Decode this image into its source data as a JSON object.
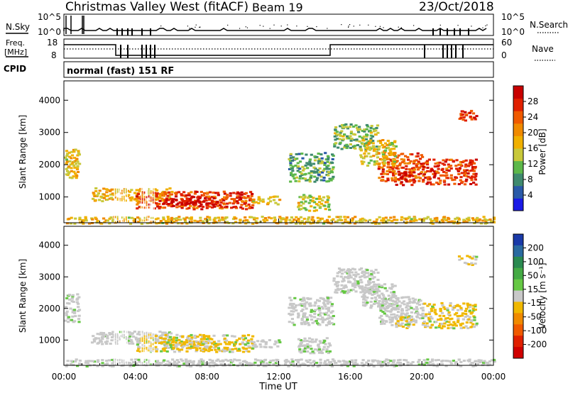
{
  "header": {
    "title": "Christmas Valley West (fitACF)",
    "beam": "Beam 19",
    "date": "23/Oct/2018"
  },
  "chart_data": [
    {
      "type": "line",
      "panel": "nsky-nsearch",
      "left_label": "N.Sky",
      "right_label": "N.Search",
      "left_ticks": [
        "10^5",
        "10^0"
      ],
      "right_ticks": [
        "10^5",
        "10^0"
      ]
    },
    {
      "type": "line",
      "panel": "freq-nave",
      "left_label": "Freq.",
      "left_unit": "[MHz]",
      "right_label": "Nave",
      "left_ticks": [
        "18",
        "8"
      ],
      "right_ticks": [
        "60",
        "0"
      ],
      "cpid_label": "CPID",
      "cpid_text": "normal (fast) 151 RF"
    },
    {
      "type": "heatmap",
      "panel": "power",
      "ylabel": "Slant Range [km]",
      "ylim": [
        200,
        4600
      ],
      "yticks": [
        1000,
        2000,
        3000,
        4000
      ],
      "colorbar_label": "Power [dB]",
      "colorbar_ticks": [
        "4",
        "8",
        "12",
        "16",
        "20",
        "24",
        "28"
      ],
      "colorbar_colors": [
        "#1a1ae6",
        "#2a5aa8",
        "#3f8a6e",
        "#5db84a",
        "#c8c83a",
        "#f0b000",
        "#f08a00",
        "#f05a00",
        "#e02000",
        "#c80000"
      ]
    },
    {
      "type": "heatmap",
      "panel": "velocity",
      "ylabel": "Slant Range [km]",
      "ylim": [
        200,
        4600
      ],
      "yticks": [
        1000,
        2000,
        3000,
        4000
      ],
      "colorbar_label": "Velocity [m s⁻¹]",
      "colorbar_ticks": [
        "200",
        "100",
        "50",
        "15",
        "-15",
        "-50",
        "-100",
        "-200"
      ],
      "colorbar_colors": [
        "#1a3aa8",
        "#2a6aa0",
        "#2a8a50",
        "#44aa44",
        "#66c844",
        "#c8c8c8",
        "#f0b800",
        "#f08a00",
        "#f05a00",
        "#e02000",
        "#d00000"
      ]
    }
  ],
  "xaxis": {
    "label": "Time UT",
    "ticks": [
      "00:00",
      "04:00",
      "08:00",
      "12:00",
      "16:00",
      "20:00",
      "00:00"
    ]
  }
}
